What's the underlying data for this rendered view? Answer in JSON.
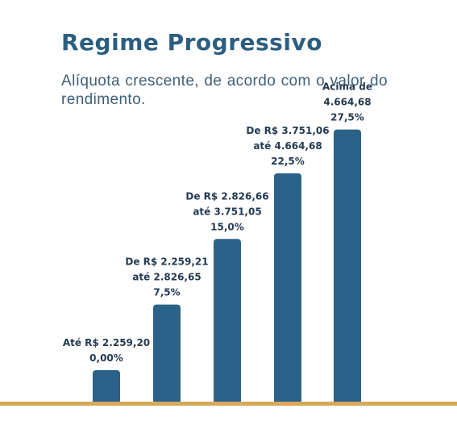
{
  "chart_data": {
    "type": "bar",
    "title": "Regime Progressivo",
    "subtitle": "Alíquota crescente, de acordo com o valor do rendimento.",
    "categories": [
      [
        "Até R$ 2.259,20"
      ],
      [
        "De R$ 2.259,21",
        "até 2.826,65"
      ],
      [
        "De R$ 2.826,66",
        "até 3.751,05"
      ],
      [
        "De R$ 3.751,06",
        "até 4.664,68"
      ],
      [
        "Acima de",
        "4.664,68"
      ]
    ],
    "value_labels": [
      "0,00%",
      "7,5%",
      "15,0%",
      "22,5%",
      "27,5%"
    ],
    "values": [
      0,
      7.5,
      15.0,
      22.5,
      27.5
    ],
    "ylim": [
      0,
      27.5
    ],
    "colors": {
      "bar": "#2b6289",
      "baseline": "#d5a95a",
      "label": "#243a52"
    }
  }
}
